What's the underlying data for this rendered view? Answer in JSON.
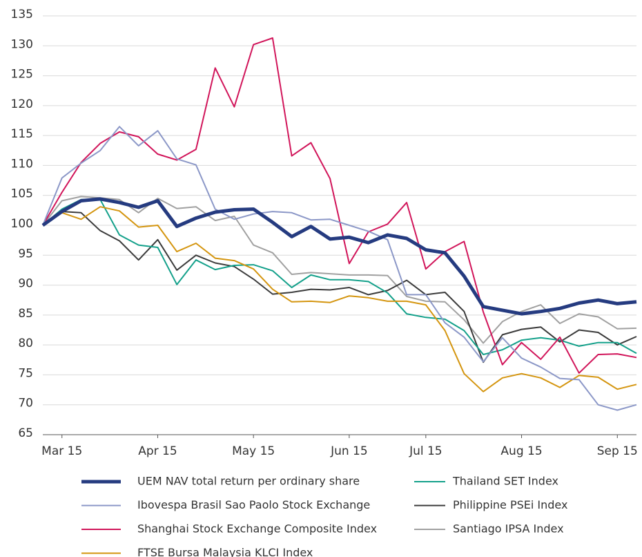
{
  "chart_data": {
    "type": "line",
    "categories": [
      null,
      "Mar 15",
      null,
      null,
      null,
      null,
      "Apr 15",
      null,
      null,
      null,
      null,
      "May 15",
      null,
      null,
      null,
      null,
      "Jun 15",
      null,
      null,
      null,
      "Jul 15",
      null,
      null,
      null,
      null,
      "Aug 15",
      null,
      null,
      null,
      null,
      "Sep 15",
      null
    ],
    "ylim": [
      65,
      135
    ],
    "yticks": [
      65,
      70,
      75,
      80,
      85,
      90,
      95,
      100,
      105,
      110,
      115,
      120,
      125,
      130,
      135
    ],
    "grid": true,
    "series": [
      {
        "name": "UEM NAV total return per ordinary share",
        "color": "#253b80",
        "line_width": 5,
        "values": [
          100,
          102.3,
          104.1,
          104.4,
          103.8,
          103,
          104.1,
          99.8,
          101.2,
          102.2,
          102.6,
          102.7,
          100.5,
          98.1,
          99.8,
          97.7,
          98,
          97.1,
          98.4,
          97.8,
          95.9,
          95.4,
          91.5,
          86.4,
          85.8,
          85.2,
          85.6,
          86.1,
          87,
          87.5,
          86.9,
          87.2
        ]
      },
      {
        "name": "Ibovespa Brasil Sao Paolo Stock Exchange",
        "color": "#8b97c7",
        "line_width": 2,
        "values": [
          100,
          107.9,
          110.4,
          112.5,
          116.5,
          113.3,
          115.8,
          111.1,
          110.1,
          102.7,
          101,
          101.9,
          102.3,
          102.1,
          100.9,
          101,
          100,
          99,
          97.6,
          88.4,
          88.4,
          83.7,
          81.3,
          77.2,
          81.2,
          77.8,
          76.3,
          74.4,
          74.2,
          70,
          69.1,
          70
        ]
      },
      {
        "name": "Shanghai Stock Exchange Composite Index",
        "color": "#d1155a",
        "line_width": 2,
        "values": [
          100,
          105.5,
          110.5,
          113.7,
          115.6,
          114.8,
          111.9,
          110.9,
          112.7,
          126.3,
          119.8,
          130.2,
          131.3,
          111.6,
          113.8,
          107.8,
          93.6,
          98.9,
          100.2,
          103.8,
          92.7,
          95.6,
          97.3,
          85.5,
          76.7,
          80.4,
          77.6,
          81.3,
          75.3,
          78.4,
          78.5,
          77.9
        ]
      },
      {
        "name": "FTSE Bursa Malaysia KLCI Index",
        "color": "#d4950f",
        "line_width": 2,
        "values": [
          100,
          102.1,
          101,
          103.1,
          102.4,
          99.7,
          100,
          95.6,
          97,
          94.5,
          94.1,
          92.7,
          89.3,
          87.2,
          87.3,
          87.1,
          88.2,
          87.9,
          87.3,
          87.3,
          86.7,
          82.4,
          75.2,
          72.2,
          74.5,
          75.2,
          74.5,
          72.9,
          74.9,
          74.6,
          72.6,
          73.4
        ]
      },
      {
        "name": "Thailand SET Index",
        "color": "#13a08a",
        "line_width": 2,
        "values": [
          100,
          102.7,
          104.3,
          104.3,
          98.4,
          96.7,
          96.3,
          90.1,
          94.2,
          92.6,
          93.3,
          93.4,
          92.4,
          89.6,
          91.7,
          90.9,
          90.9,
          90.6,
          88.7,
          85.2,
          84.6,
          84.3,
          82.4,
          78.4,
          79.2,
          80.8,
          81.2,
          80.8,
          79.8,
          80.4,
          80.4,
          78.6
        ]
      },
      {
        "name": "Philippine PSEi Index",
        "color": "#3a3a3a",
        "line_width": 2,
        "values": [
          100,
          102.3,
          102.1,
          99.1,
          97.4,
          94.2,
          97.6,
          92.5,
          95,
          93.7,
          93.1,
          91,
          88.5,
          88.8,
          89.3,
          89.2,
          89.6,
          88.4,
          89.1,
          90.8,
          88.4,
          88.8,
          85.6,
          77.1,
          81.7,
          82.6,
          83,
          80.5,
          82.5,
          82.1,
          80,
          81.4
        ]
      },
      {
        "name": "Santiago IPSA Index",
        "color": "#a0a0a0",
        "line_width": 2,
        "values": [
          100,
          104.1,
          104.8,
          104.6,
          104.3,
          102.1,
          104.5,
          102.8,
          103.1,
          100.8,
          101.5,
          96.7,
          95.4,
          91.8,
          92.1,
          91.9,
          91.7,
          91.7,
          91.6,
          88.1,
          87.3,
          87.2,
          84.2,
          80.3,
          83.9,
          85.6,
          86.7,
          83.6,
          85.2,
          84.7,
          82.7,
          82.8
        ]
      }
    ]
  }
}
